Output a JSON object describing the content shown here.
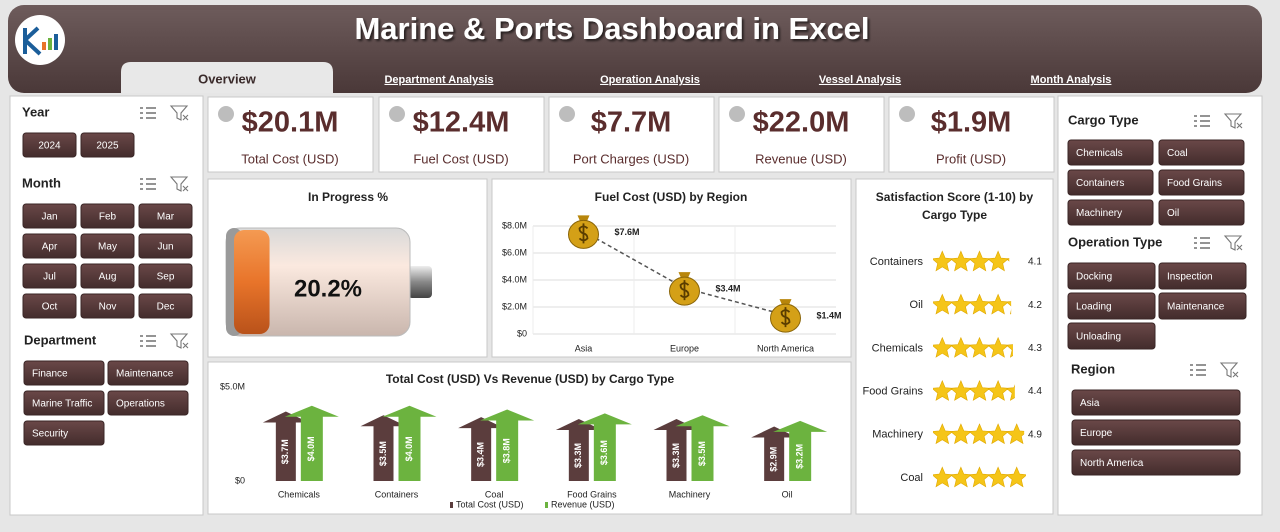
{
  "header": {
    "title": "Marine & Ports Dashboard in Excel"
  },
  "tabs": [
    "Overview",
    "Department Analysis",
    "Operation Analysis",
    "Vessel Analysis",
    "Month Analysis"
  ],
  "slicers": [
    {
      "title": "Year",
      "items": [
        "2024",
        "2025"
      ]
    },
    {
      "title": "Month",
      "items": [
        "Jan",
        "Feb",
        "Mar",
        "Apr",
        "May",
        "Jun",
        "Jul",
        "Aug",
        "Sep",
        "Oct",
        "Nov",
        "Dec"
      ]
    },
    {
      "title": "Department",
      "items": [
        "Finance",
        "Maintenance",
        "Marine Traffic",
        "Operations",
        "Security"
      ]
    },
    {
      "title": "Cargo Type",
      "items": [
        "Chemicals",
        "Coal",
        "Containers",
        "Food Grains",
        "Machinery",
        "Oil"
      ]
    },
    {
      "title": "Operation Type",
      "items": [
        "Docking",
        "Inspection",
        "Loading",
        "Maintenance",
        "Unloading"
      ]
    },
    {
      "title": "Region",
      "items": [
        "Asia",
        "Europe",
        "North America"
      ]
    }
  ],
  "kpis": [
    {
      "value": "$20.1M",
      "label": "Total Cost (USD)"
    },
    {
      "value": "$12.4M",
      "label": "Fuel Cost (USD)"
    },
    {
      "value": "$7.7M",
      "label": "Port Charges (USD)"
    },
    {
      "value": "$22.0M",
      "label": "Revenue (USD)"
    },
    {
      "value": "$1.9M",
      "label": "Profit (USD)"
    }
  ],
  "chart_data": [
    {
      "type": "battery",
      "title": "In Progress %",
      "values": [
        20.2
      ],
      "value_labels": [
        "20.2%"
      ],
      "xlim": [
        0,
        100
      ],
      "color": "#e8742a"
    },
    {
      "type": "line",
      "title": "Fuel Cost (USD) by Region",
      "categories": [
        "Asia",
        "Europe",
        "North America"
      ],
      "values": [
        7600000,
        3400000,
        1400000
      ],
      "value_labels": [
        "$7.6M",
        "$3.4M",
        "$1.4M"
      ],
      "color": "#555555",
      "ylim": [
        0,
        8000000
      ],
      "yticks": [
        {
          "value": 0,
          "label": "$0"
        },
        {
          "value": 2000000,
          "label": "$2.0M"
        },
        {
          "value": 4000000,
          "label": "$4.0M"
        },
        {
          "value": 6000000,
          "label": "$6.0M"
        },
        {
          "value": 8000000,
          "label": "$8.0M"
        }
      ],
      "grid": true
    },
    {
      "type": "bar",
      "title": "Total Cost (USD) Vs Revenue (USD) by Cargo Type",
      "categories": [
        "Chemicals",
        "Containers",
        "Coal",
        "Food Grains",
        "Machinery",
        "Oil"
      ],
      "series": [
        {
          "name": "Total Cost (USD)",
          "color": "#5b3d3d",
          "values": [
            3700000,
            3500000,
            3400000,
            3300000,
            3300000,
            2900000
          ],
          "value_labels": [
            "$3.7M",
            "$3.5M",
            "$3.4M",
            "$3.3M",
            "$3.3M",
            "$2.9M"
          ]
        },
        {
          "name": "Revenue (USD)",
          "color": "#6cb33f",
          "values": [
            4000000,
            4000000,
            3800000,
            3600000,
            3500000,
            3200000
          ],
          "value_labels": [
            "$4.0M",
            "$4.0M",
            "$3.8M",
            "$3.6M",
            "$3.5M",
            "$3.2M"
          ]
        }
      ],
      "ylim": [
        0,
        5000000
      ],
      "yticks": [
        {
          "value": 0,
          "label": "$0"
        },
        {
          "value": 5000000,
          "label": "$5.0M"
        }
      ],
      "legend": "bottom"
    },
    {
      "type": "stars",
      "title": "Satisfaction Score (1-10) by Cargo Type",
      "categories": [
        "Containers",
        "Oil",
        "Chemicals",
        "Food Grains",
        "Machinery",
        "Coal"
      ],
      "values": [
        4.1,
        4.2,
        4.3,
        4.4,
        4.9,
        5.0
      ],
      "value_labels": [
        "4.1",
        "4.2",
        "4.3",
        "4.4",
        "4.9",
        null
      ],
      "xlim": [
        0,
        5
      ],
      "color": "#f5c518"
    }
  ]
}
